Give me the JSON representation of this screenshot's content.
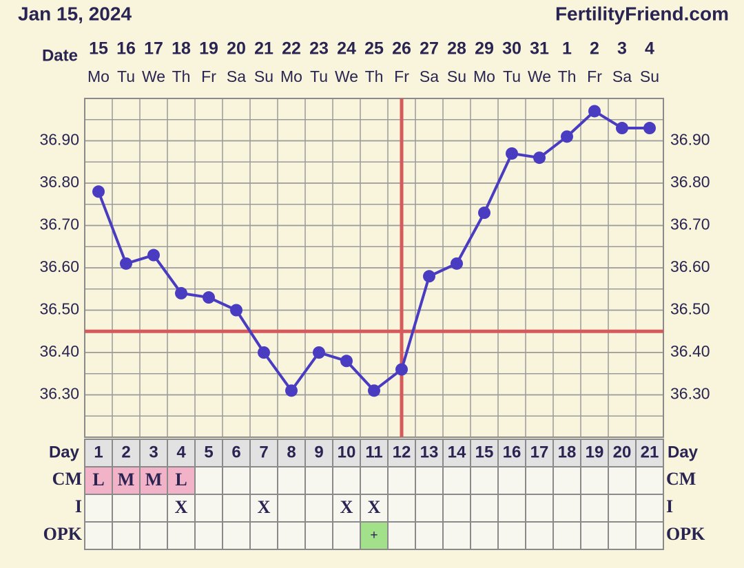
{
  "chart_data": {
    "type": "line",
    "title": "Jan 15, 2024",
    "source": "FertilityFriend.com",
    "date_label": "Date",
    "categories": [
      "15",
      "16",
      "17",
      "18",
      "19",
      "20",
      "21",
      "22",
      "23",
      "24",
      "25",
      "26",
      "27",
      "28",
      "29",
      "30",
      "31",
      "1",
      "2",
      "3",
      "4"
    ],
    "weekdays": [
      "Mo",
      "Tu",
      "We",
      "Th",
      "Fr",
      "Sa",
      "Su",
      "Mo",
      "Tu",
      "We",
      "Th",
      "Fr",
      "Sa",
      "Su",
      "Mo",
      "Tu",
      "We",
      "Th",
      "Fr",
      "Sa",
      "Su"
    ],
    "day_label": "Day",
    "cycle_days": [
      1,
      2,
      3,
      4,
      5,
      6,
      7,
      8,
      9,
      10,
      11,
      12,
      13,
      14,
      15,
      16,
      17,
      18,
      19,
      20,
      21
    ],
    "series": [
      {
        "color": "#4a3cc0",
        "values": [
          36.78,
          36.61,
          36.63,
          36.54,
          36.53,
          36.5,
          36.4,
          36.31,
          36.4,
          36.38,
          36.31,
          36.36,
          36.58,
          36.61,
          36.73,
          36.87,
          36.86,
          36.91,
          36.97,
          36.93,
          36.93
        ]
      }
    ],
    "ylim": [
      36.2,
      37.0
    ],
    "yticks": [
      {
        "value": 36.3,
        "label": "36.30"
      },
      {
        "value": 36.4,
        "label": "36.40"
      },
      {
        "value": 36.5,
        "label": "36.50"
      },
      {
        "value": 36.6,
        "label": "36.60"
      },
      {
        "value": 36.7,
        "label": "36.70"
      },
      {
        "value": 36.8,
        "label": "36.80"
      },
      {
        "value": 36.9,
        "label": "36.90"
      }
    ],
    "grid": true,
    "minor_grid_step": 0.05,
    "coverline": 36.45,
    "ovulation_day": 12,
    "marker_line_color": "#d65a5c",
    "rows": [
      {
        "label": "CM",
        "highlight": "#f2b3c9",
        "values": [
          "L",
          "M",
          "M",
          "L",
          null,
          null,
          null,
          null,
          null,
          null,
          null,
          null,
          null,
          null,
          null,
          null,
          null,
          null,
          null,
          null,
          null
        ]
      },
      {
        "label": "I",
        "values": [
          null,
          null,
          null,
          "X",
          null,
          null,
          "X",
          null,
          null,
          "X",
          "X",
          null,
          null,
          null,
          null,
          null,
          null,
          null,
          null,
          null,
          null
        ]
      },
      {
        "label": "OPK",
        "highlight": "#a3e08a",
        "values": [
          null,
          null,
          null,
          null,
          null,
          null,
          null,
          null,
          null,
          null,
          "+",
          null,
          null,
          null,
          null,
          null,
          null,
          null,
          null,
          null,
          null
        ]
      }
    ]
  }
}
